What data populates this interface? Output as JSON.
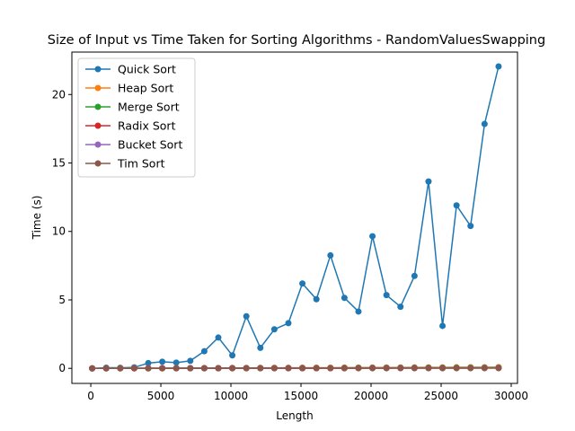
{
  "chart_data": {
    "type": "line",
    "title": "Size of Input vs Time Taken for Sorting Algorithms - RandomValuesSwapping",
    "xlabel": "Length",
    "ylabel": "Time (s)",
    "xlim": [
      -1350,
      30450
    ],
    "ylim": [
      -1.1,
      23.1
    ],
    "xticks": [
      0,
      5000,
      10000,
      15000,
      20000,
      25000,
      30000
    ],
    "yticks": [
      0,
      5,
      10,
      15,
      20
    ],
    "grid": false,
    "legend_position": "top-left",
    "x": [
      100,
      1100,
      2100,
      3100,
      4100,
      5100,
      6100,
      7100,
      8100,
      9100,
      10100,
      11100,
      12100,
      13100,
      14100,
      15100,
      16100,
      17100,
      18100,
      19100,
      20100,
      21100,
      22100,
      23100,
      24100,
      25100,
      26100,
      27100,
      28100,
      29100
    ],
    "series": [
      {
        "name": "Quick Sort",
        "color": "#1f77b4",
        "values": [
          0.0,
          0.05,
          0.04,
          0.07,
          0.38,
          0.48,
          0.42,
          0.55,
          1.25,
          2.25,
          0.95,
          3.8,
          1.5,
          2.85,
          3.3,
          6.2,
          5.05,
          8.25,
          5.15,
          4.15,
          9.65,
          5.35,
          4.5,
          6.75,
          13.65,
          3.1,
          11.9,
          10.4,
          17.85,
          22.05
        ]
      },
      {
        "name": "Heap Sort",
        "color": "#ff7f0e",
        "values": [
          0.0,
          0.003,
          0.006,
          0.009,
          0.012,
          0.015,
          0.018,
          0.021,
          0.024,
          0.027,
          0.03,
          0.033,
          0.036,
          0.039,
          0.042,
          0.045,
          0.048,
          0.051,
          0.054,
          0.057,
          0.06,
          0.063,
          0.066,
          0.069,
          0.072,
          0.075,
          0.078,
          0.081,
          0.084,
          0.087
        ]
      },
      {
        "name": "Merge Sort",
        "color": "#2ca02c",
        "values": [
          0.0,
          0.002,
          0.004,
          0.006,
          0.008,
          0.01,
          0.012,
          0.014,
          0.016,
          0.018,
          0.02,
          0.022,
          0.024,
          0.026,
          0.028,
          0.03,
          0.032,
          0.034,
          0.036,
          0.038,
          0.04,
          0.042,
          0.044,
          0.046,
          0.048,
          0.05,
          0.052,
          0.054,
          0.056,
          0.058
        ]
      },
      {
        "name": "Radix Sort",
        "color": "#d62728",
        "values": [
          0.0,
          0.001,
          0.002,
          0.003,
          0.004,
          0.005,
          0.006,
          0.007,
          0.008,
          0.009,
          0.01,
          0.011,
          0.012,
          0.013,
          0.014,
          0.015,
          0.016,
          0.017,
          0.018,
          0.019,
          0.02,
          0.021,
          0.022,
          0.023,
          0.024,
          0.025,
          0.026,
          0.027,
          0.028,
          0.029
        ]
      },
      {
        "name": "Bucket Sort",
        "color": "#9467bd",
        "values": [
          0.0,
          0.001,
          0.002,
          0.003,
          0.004,
          0.005,
          0.006,
          0.007,
          0.008,
          0.009,
          0.01,
          0.011,
          0.012,
          0.013,
          0.014,
          0.015,
          0.016,
          0.017,
          0.018,
          0.019,
          0.02,
          0.021,
          0.022,
          0.023,
          0.024,
          0.025,
          0.026,
          0.027,
          0.028,
          0.029
        ]
      },
      {
        "name": "Tim Sort",
        "color": "#8c564b",
        "values": [
          0.0,
          0.0005,
          0.001,
          0.0015,
          0.002,
          0.0025,
          0.003,
          0.0035,
          0.004,
          0.0045,
          0.005,
          0.0055,
          0.006,
          0.0065,
          0.007,
          0.0075,
          0.008,
          0.0085,
          0.009,
          0.0095,
          0.01,
          0.0105,
          0.011,
          0.0115,
          0.012,
          0.0125,
          0.013,
          0.0135,
          0.014,
          0.0145
        ]
      }
    ]
  }
}
